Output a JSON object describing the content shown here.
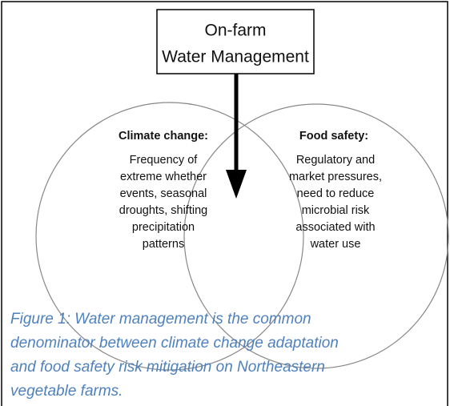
{
  "header": {
    "lines": [
      "On-farm",
      "Water Management"
    ]
  },
  "left": {
    "title": "Climate change:",
    "lines": [
      "Frequency of",
      "extreme whether",
      "events, seasonal",
      "droughts, shifting",
      "precipitation",
      "patterns"
    ]
  },
  "right": {
    "title": "Food safety:",
    "lines": [
      "Regulatory and",
      "market pressures,",
      "need to reduce",
      "microbial risk",
      "associated with",
      "water use"
    ]
  },
  "caption": {
    "lines": [
      "Figure 1: Water management is the common",
      "denominator between climate change adaptation",
      "and food safety risk mitigation on Northeastern",
      "vegetable farms."
    ]
  }
}
